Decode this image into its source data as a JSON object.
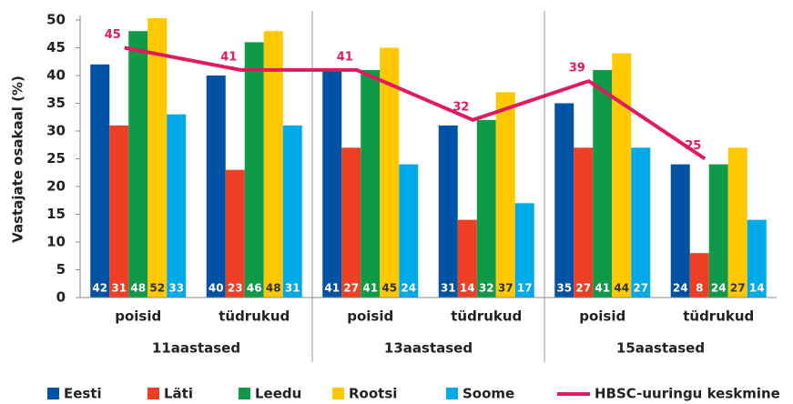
{
  "chart_data": {
    "type": "bar",
    "ylabel": "Vastajate osakaal (%)",
    "categories": [
      "poisid",
      "tüdrukud",
      "poisid",
      "tüdrukud",
      "poisid",
      "tüdrukud"
    ],
    "groups": [
      "11aastased",
      "13aastased",
      "15aastased"
    ],
    "series": [
      {
        "name": "Eesti",
        "color": "#0052a5",
        "values": [
          42,
          40,
          41,
          31,
          35,
          24
        ]
      },
      {
        "name": "Läti",
        "color": "#ee3e23",
        "values": [
          31,
          23,
          27,
          14,
          27,
          8
        ]
      },
      {
        "name": "Leedu",
        "color": "#0f9a48",
        "values": [
          48,
          46,
          41,
          32,
          41,
          24
        ]
      },
      {
        "name": "Rootsi",
        "color": "#ffc800",
        "values": [
          52,
          48,
          45,
          37,
          44,
          27
        ]
      },
      {
        "name": "Soome",
        "color": "#00a9e8",
        "values": [
          33,
          31,
          24,
          17,
          27,
          14
        ]
      }
    ],
    "line_series": {
      "name": "HBSC-uuringu keskmine",
      "color": "#e3195e",
      "values": [
        45,
        41,
        41,
        32,
        39,
        25
      ]
    },
    "ylim": [
      0,
      50
    ],
    "yticks": [
      0,
      5,
      10,
      15,
      20,
      25,
      30,
      35,
      40,
      45,
      50
    ]
  }
}
